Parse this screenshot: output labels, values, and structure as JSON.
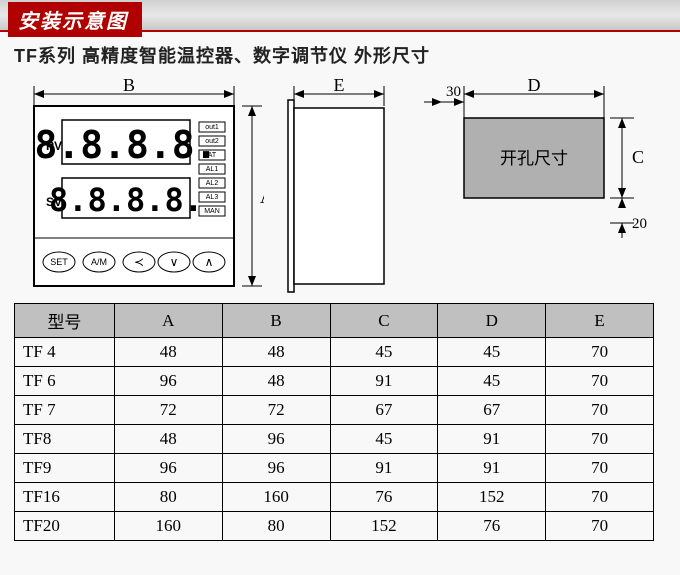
{
  "header": {
    "title": "安装示意图"
  },
  "subtitle": "TF系列 高精度智能温控器、数字调节仪 外形尺寸",
  "front_view": {
    "dim_B": "B",
    "dim_A": "A",
    "pv_label": "PV",
    "sv_label": "SV",
    "digits": "8.8.8.8.",
    "leds": [
      "out1",
      "out2",
      "AT",
      "AL1",
      "AL2",
      "AL3",
      "MAN"
    ],
    "buttons": [
      "SET",
      "A/M",
      "≺",
      "∨",
      "∧"
    ]
  },
  "side_view": {
    "dim_E": "E"
  },
  "cutout_view": {
    "dim_top": "30",
    "dim_D": "D",
    "dim_C": "C",
    "dim_bottom": "20",
    "label": "开孔尺寸"
  },
  "table": {
    "headers": [
      "型号",
      "A",
      "B",
      "C",
      "D",
      "E"
    ],
    "rows": [
      [
        "TF 4",
        "48",
        "48",
        "45",
        "45",
        "70"
      ],
      [
        "TF 6",
        "96",
        "48",
        "91",
        "45",
        "70"
      ],
      [
        "TF 7",
        "72",
        "72",
        "67",
        "67",
        "70"
      ],
      [
        "TF8",
        "48",
        "96",
        "45",
        "91",
        "70"
      ],
      [
        "TF9",
        "96",
        "96",
        "91",
        "91",
        "70"
      ],
      [
        "TF16",
        "80",
        "160",
        "76",
        "152",
        "70"
      ],
      [
        "TF20",
        "160",
        "80",
        "152",
        "76",
        "70"
      ]
    ]
  },
  "styling": {
    "header_bg": "#b00000",
    "header_text": "#ffffff",
    "table_header_bg": "#c0c0c0",
    "cutout_fill": "#b0b0b0",
    "line_color": "#000000"
  }
}
